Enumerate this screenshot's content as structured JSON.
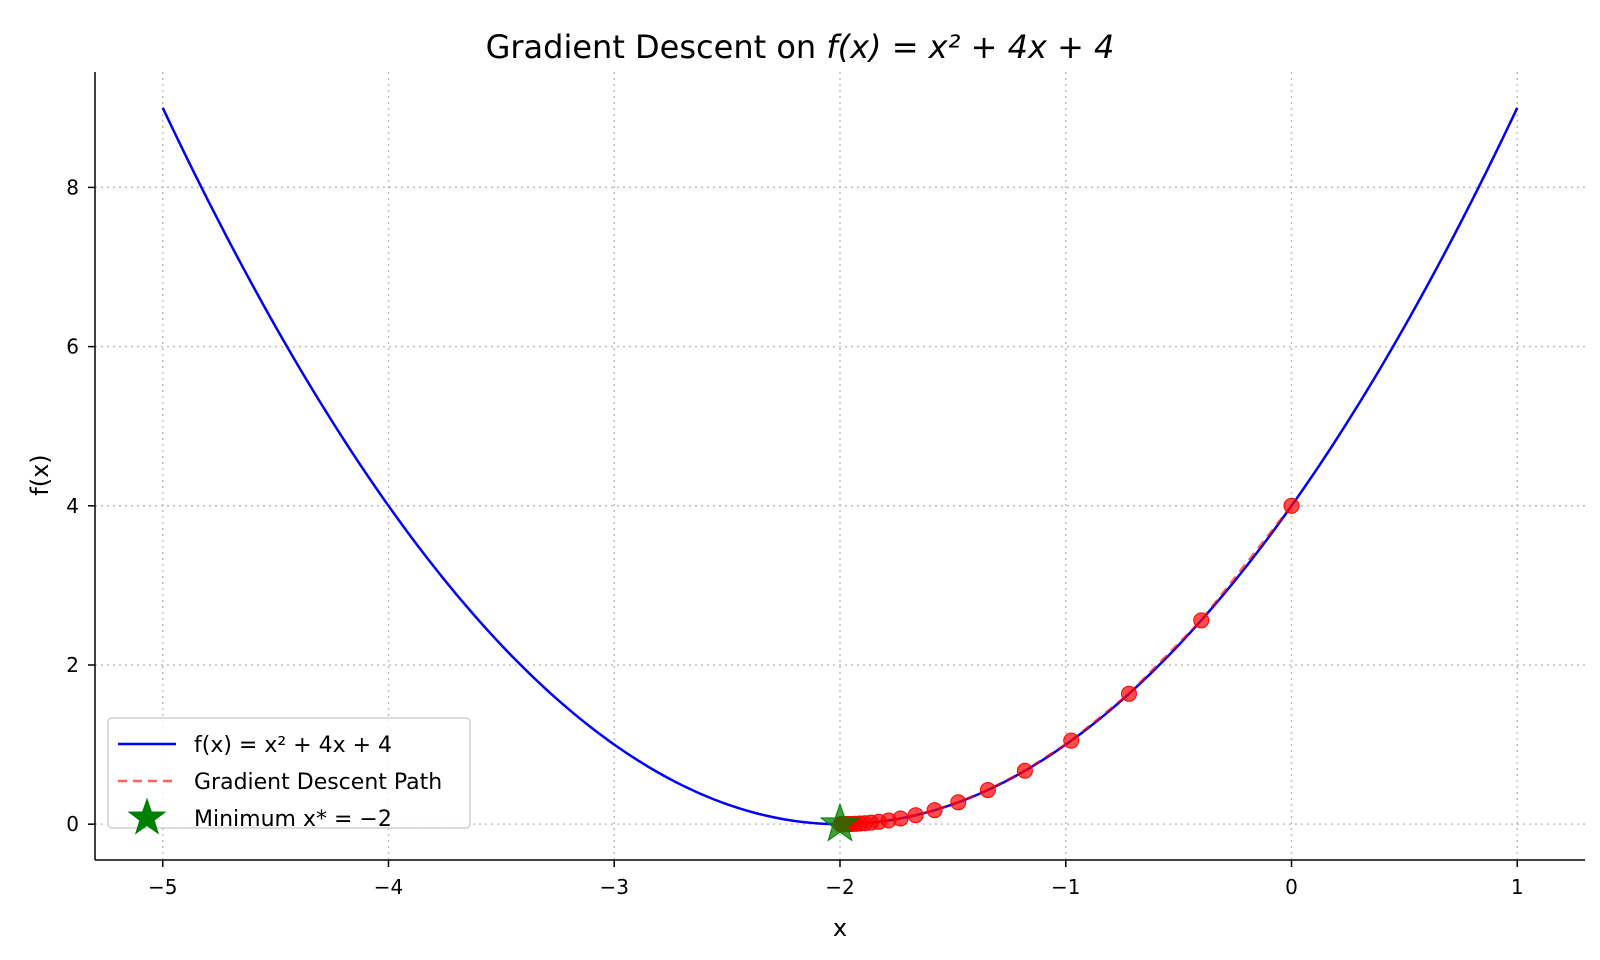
{
  "chart_data": {
    "type": "line",
    "title_text": "Gradient Descent on ",
    "title_math": "f(x) = x² + 4x + 4",
    "xlabel": "x",
    "ylabel": "f(x)",
    "xlim": [
      -5.3,
      1.3
    ],
    "ylim": [
      -0.45,
      9.45
    ],
    "xticks": [
      -5,
      -4,
      -3,
      -2,
      -1,
      0,
      1
    ],
    "xtick_labels": [
      "−5",
      "−4",
      "−3",
      "−2",
      "−1",
      "0",
      "1"
    ],
    "yticks": [
      0,
      2,
      4,
      6,
      8
    ],
    "ytick_labels": [
      "0",
      "2",
      "4",
      "6",
      "8"
    ],
    "grid": true,
    "legend_position": "lower left",
    "series": [
      {
        "name": "f(x) = x² + 4x + 4",
        "kind": "function",
        "function": "x^2 + 4x + 4",
        "domain": [
          -5,
          1
        ],
        "color": "#0000ff",
        "line_style": "solid"
      },
      {
        "name": "Gradient Descent Path",
        "kind": "path",
        "color": "#ff0000",
        "line_style": "dashed",
        "points": [
          {
            "x": 0.0,
            "y": 4.0
          },
          {
            "x": -0.4,
            "y": 2.56
          },
          {
            "x": -0.72,
            "y": 1.638
          },
          {
            "x": -0.976,
            "y": 1.049
          },
          {
            "x": -1.181,
            "y": 0.671
          },
          {
            "x": -1.345,
            "y": 0.429
          },
          {
            "x": -1.476,
            "y": 0.275
          },
          {
            "x": -1.581,
            "y": 0.176
          },
          {
            "x": -1.665,
            "y": 0.113
          },
          {
            "x": -1.732,
            "y": 0.072
          },
          {
            "x": -1.785,
            "y": 0.046
          },
          {
            "x": -1.828,
            "y": 0.03
          },
          {
            "x": -1.863,
            "y": 0.019
          },
          {
            "x": -1.89,
            "y": 0.012
          },
          {
            "x": -1.912,
            "y": 0.008
          },
          {
            "x": -1.93,
            "y": 0.005
          },
          {
            "x": -1.944,
            "y": 0.003
          },
          {
            "x": -1.955,
            "y": 0.002
          },
          {
            "x": -1.964,
            "y": 0.001
          },
          {
            "x": -1.971,
            "y": 0.001
          },
          {
            "x": -1.977,
            "y": 0.001
          },
          {
            "x": -1.982,
            "y": 0.0
          },
          {
            "x": -1.985,
            "y": 0.0
          },
          {
            "x": -1.988,
            "y": 0.0
          },
          {
            "x": -1.991,
            "y": 0.0
          },
          {
            "x": -1.993,
            "y": 0.0
          },
          {
            "x": -1.994,
            "y": 0.0
          },
          {
            "x": -1.995,
            "y": 0.0
          },
          {
            "x": -1.996,
            "y": 0.0
          },
          {
            "x": -1.997,
            "y": 0.0
          }
        ]
      },
      {
        "name": "Minimum x* = −2",
        "kind": "marker",
        "marker": "star",
        "color": "#008000",
        "point": {
          "x": -2,
          "y": 0
        }
      }
    ],
    "legend_entries": [
      {
        "label": "f(x) = x² + 4x + 4",
        "style": "line-solid",
        "color": "#0000ff"
      },
      {
        "label": "Gradient Descent Path",
        "style": "line-dashed",
        "color": "#ff6060"
      },
      {
        "label": "Minimum x* = −2",
        "style": "star",
        "color": "#008000"
      }
    ]
  }
}
